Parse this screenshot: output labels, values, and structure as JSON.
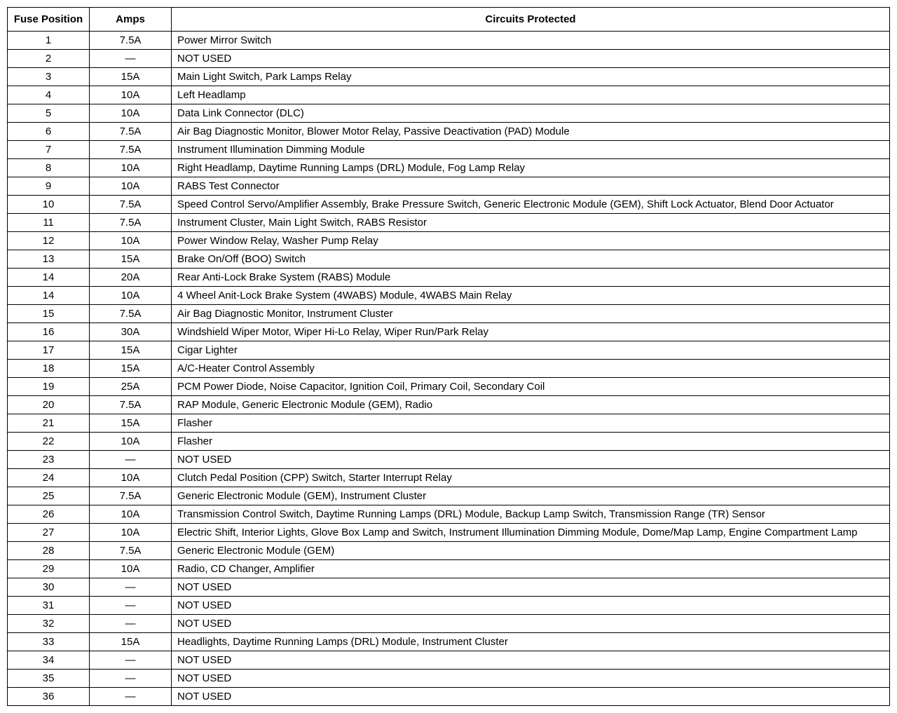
{
  "fuseTable": {
    "columns": [
      "Fuse Position",
      "Amps",
      "Circuits   Protected"
    ],
    "columnWidths": [
      "108px",
      "108px",
      "auto"
    ],
    "fontSize": 15,
    "borderColor": "#000000",
    "backgroundColor": "#ffffff",
    "rows": [
      [
        "1",
        "7.5A",
        "Power Mirror Switch"
      ],
      [
        "2",
        "—",
        "NOT USED"
      ],
      [
        "3",
        "15A",
        "Main Light Switch, Park Lamps Relay"
      ],
      [
        "4",
        "10A",
        "Left Headlamp"
      ],
      [
        "5",
        "10A",
        "Data Link Connector (DLC)"
      ],
      [
        "6",
        "7.5A",
        "Air Bag Diagnostic Monitor, Blower Motor Relay, Passive Deactivation (PAD) Module"
      ],
      [
        "7",
        "7.5A",
        "Instrument Illumination Dimming Module"
      ],
      [
        "8",
        "10A",
        "Right Headlamp, Daytime Running Lamps (DRL) Module, Fog Lamp Relay"
      ],
      [
        "9",
        "10A",
        "RABS Test Connector"
      ],
      [
        "10",
        "7.5A",
        "Speed Control Servo/Amplifier Assembly, Brake Pressure Switch, Generic Electronic Module (GEM), Shift Lock Actuator, Blend Door Actuator"
      ],
      [
        "11",
        "7.5A",
        "Instrument Cluster, Main Light Switch, RABS Resistor"
      ],
      [
        "12",
        "10A",
        "Power Window Relay, Washer Pump Relay"
      ],
      [
        "13",
        "15A",
        "Brake On/Off (BOO) Switch"
      ],
      [
        "14",
        "20A",
        "Rear Anti-Lock Brake System (RABS) Module"
      ],
      [
        "14",
        "10A",
        "4 Wheel Anit-Lock Brake System (4WABS) Module, 4WABS Main Relay"
      ],
      [
        "15",
        "7.5A",
        "Air Bag Diagnostic Monitor, Instrument Cluster"
      ],
      [
        "16",
        "30A",
        "Windshield Wiper Motor, Wiper Hi-Lo Relay, Wiper Run/Park Relay"
      ],
      [
        "17",
        "15A",
        "Cigar Lighter"
      ],
      [
        "18",
        "15A",
        "A/C-Heater Control Assembly"
      ],
      [
        "19",
        "25A",
        "PCM Power Diode, Noise Capacitor, Ignition Coil, Primary Coil, Secondary Coil"
      ],
      [
        "20",
        "7.5A",
        "RAP Module, Generic Electronic Module (GEM), Radio"
      ],
      [
        "21",
        "15A",
        "Flasher"
      ],
      [
        "22",
        "10A",
        "Flasher"
      ],
      [
        "23",
        "—",
        "NOT USED"
      ],
      [
        "24",
        "10A",
        "Clutch Pedal Position (CPP) Switch, Starter Interrupt Relay"
      ],
      [
        "25",
        "7.5A",
        "Generic Electronic Module (GEM), Instrument Cluster"
      ],
      [
        "26",
        "10A",
        "Transmission Control Switch, Daytime Running Lamps (DRL) Module, Backup Lamp Switch, Transmission Range (TR) Sensor"
      ],
      [
        "27",
        "10A",
        "Electric Shift, Interior Lights, Glove Box Lamp and Switch, Instrument Illumination Dimming Module, Dome/Map Lamp, Engine Compartment Lamp"
      ],
      [
        "28",
        "7.5A",
        "Generic Electronic Module (GEM)"
      ],
      [
        "29",
        "10A",
        "Radio, CD Changer, Amplifier"
      ],
      [
        "30",
        "—",
        "NOT USED"
      ],
      [
        "31",
        "—",
        "NOT USED"
      ],
      [
        "32",
        "—",
        "NOT USED"
      ],
      [
        "33",
        "15A",
        "Headlights, Daytime Running Lamps (DRL) Module, Instrument Cluster"
      ],
      [
        "34",
        "—",
        "NOT USED"
      ],
      [
        "35",
        "—",
        "NOT USED"
      ],
      [
        "36",
        "—",
        "NOT USED"
      ]
    ]
  }
}
